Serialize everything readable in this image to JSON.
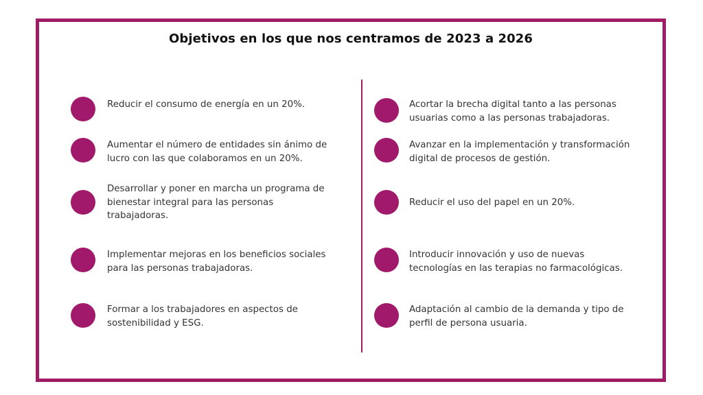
{
  "title": "Objetivos en los que nos centramos de 2023 a 2026",
  "colors": {
    "accent": "#9e1d64",
    "dot": "#a0196a",
    "text": "#333333"
  },
  "left": [
    {
      "line1": "Reducir el consumo de energía en un 20%.",
      "line2": "",
      "line3": ""
    },
    {
      "line1": "Aumentar el número de entidades sin ánimo de",
      "line2": "lucro con las que colaboramos en un 20%.",
      "line3": ""
    },
    {
      "line1": "Desarrollar y poner en marcha un programa de",
      "line2": "bienestar integral para las personas",
      "line3": "trabajadoras."
    },
    {
      "line1": "Implementar mejoras en los beneficios sociales",
      "line2": "para las personas trabajadoras.",
      "line3": ""
    },
    {
      "line1": "Formar a los trabajadores en aspectos de",
      "line2": "sostenibilidad y ESG.",
      "line3": ""
    }
  ],
  "right": [
    {
      "line1": "Acortar la brecha digital tanto a las personas",
      "line2": "usuarias como a las personas trabajadoras.",
      "line3": ""
    },
    {
      "line1": "Avanzar en la implementación y transformación",
      "line2": "digital de procesos de gestión.",
      "line3": ""
    },
    {
      "line1": "Reducir el uso del papel en un 20%.",
      "line2": "",
      "line3": ""
    },
    {
      "line1": "Introducir innovación y uso de nuevas",
      "line2": "tecnologías en las terapias no farmacológicas.",
      "line3": ""
    },
    {
      "line1": "Adaptación al cambio de la demanda y tipo de",
      "line2": "perfil de persona usuaria.",
      "line3": ""
    }
  ]
}
